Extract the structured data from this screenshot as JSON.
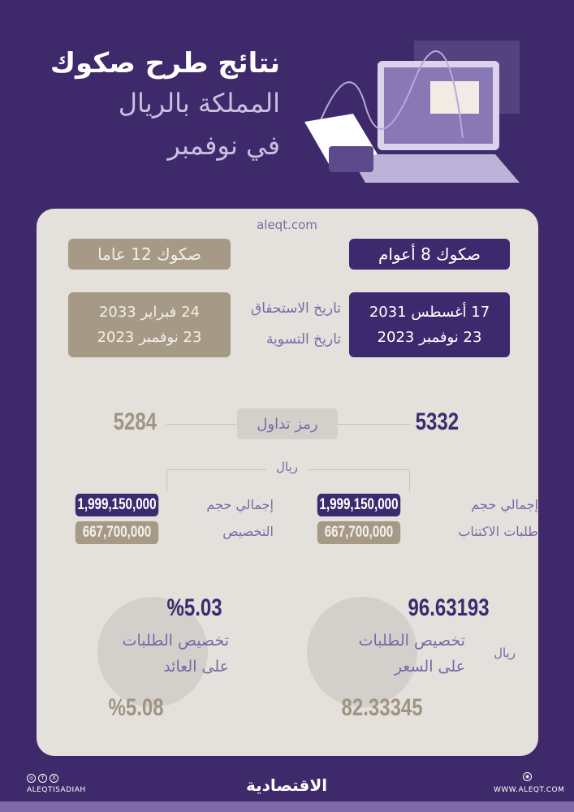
{
  "title": {
    "line1": "نتائج طرح صكوك",
    "line2": "المملكة بالريال",
    "line3": "في نوفمبر"
  },
  "website": "aleqt.com",
  "sukuk_8": {
    "label": "صكوك 8 أعوام",
    "maturity": "17 أغسطس 2031",
    "settlement": "23 نوفمبر 2023",
    "ticker": "5332",
    "total_bids": "1,999,150,000",
    "total_allocation": "667,700,000",
    "price": "96.63193",
    "price_low": "82.33345"
  },
  "sukuk_12": {
    "label": "صكوك 12 عاما",
    "maturity": "24 فبراير 2033",
    "settlement": "23 نوفمبر 2023",
    "ticker": "5284",
    "total_bids": "1,999,150,000",
    "total_allocation": "667,700,000",
    "yield": "%5.03",
    "yield_low": "%5.08"
  },
  "labels": {
    "maturity_date": "تاريخ الاستحقاق",
    "settlement_date": "تاريخ التسوية",
    "ticker": "رمز تداول",
    "riyal": "ريال",
    "total_bids_1": "إجمالي حجم",
    "total_bids_2": "طلبات الاكتتاب",
    "total_alloc_1": "إجمالي حجم",
    "total_alloc_2": "التخصيص",
    "price_alloc_1": "تخصيص الطلبات",
    "price_alloc_2": "على السعر",
    "yield_alloc_1": "تخصيص الطلبات",
    "yield_alloc_2": "على العائد",
    "price_unit": "ريال"
  },
  "footer": {
    "social_handle": "ALEQTISADIAH",
    "logo": "الاقتصادية",
    "site": "WWW.ALEQT.COM"
  },
  "colors": {
    "background": "#3e2a6a",
    "card": "#e4e0db",
    "accent_dark": "#3d2a6e",
    "accent_tan": "#a69a86",
    "label": "#7d68a8"
  }
}
